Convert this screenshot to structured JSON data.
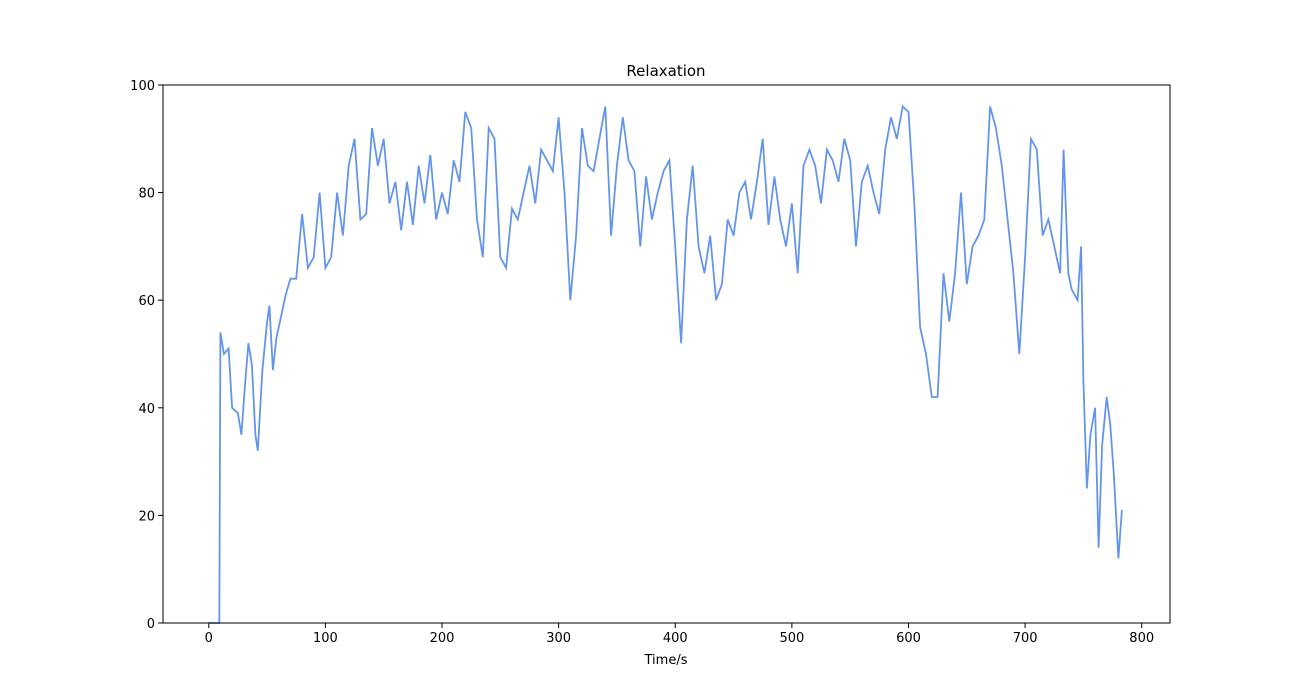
{
  "chart_data": {
    "type": "line",
    "title": "Relaxation",
    "x_label": "Time/s",
    "x": [
      0,
      9,
      10,
      13,
      17,
      20,
      25,
      28,
      31,
      34,
      37,
      40,
      42,
      46,
      50,
      52,
      55,
      58,
      62,
      66,
      70,
      75,
      80,
      85,
      90,
      95,
      100,
      105,
      110,
      115,
      120,
      125,
      130,
      135,
      140,
      145,
      150,
      155,
      160,
      165,
      170,
      175,
      180,
      185,
      190,
      195,
      200,
      205,
      210,
      215,
      220,
      225,
      230,
      235,
      240,
      245,
      250,
      255,
      260,
      265,
      270,
      275,
      280,
      285,
      290,
      295,
      300,
      305,
      310,
      315,
      320,
      325,
      330,
      335,
      340,
      345,
      350,
      355,
      360,
      365,
      370,
      375,
      380,
      385,
      390,
      395,
      400,
      405,
      410,
      415,
      420,
      425,
      430,
      435,
      440,
      445,
      450,
      455,
      460,
      465,
      470,
      475,
      480,
      485,
      490,
      495,
      500,
      505,
      510,
      515,
      520,
      525,
      530,
      535,
      540,
      545,
      550,
      555,
      560,
      565,
      570,
      575,
      580,
      585,
      590,
      595,
      600,
      605,
      610,
      615,
      620,
      625,
      630,
      635,
      640,
      645,
      650,
      655,
      660,
      665,
      670,
      675,
      680,
      685,
      690,
      695,
      700,
      705,
      710,
      715,
      720,
      725,
      730,
      733,
      737,
      740,
      745,
      748,
      750,
      753,
      756,
      760,
      763,
      766,
      770,
      773,
      776,
      780,
      783
    ],
    "series": [
      {
        "name": "Relaxation",
        "color": "#6495ed",
        "values": [
          0,
          0,
          54,
          50,
          51,
          40,
          39,
          35,
          44,
          52,
          48,
          35,
          32,
          47,
          56,
          59,
          47,
          53,
          57,
          61,
          64,
          64,
          76,
          66,
          68,
          80,
          66,
          68,
          80,
          72,
          85,
          90,
          75,
          76,
          92,
          85,
          90,
          78,
          82,
          73,
          82,
          74,
          85,
          78,
          87,
          75,
          80,
          76,
          86,
          82,
          95,
          92,
          75,
          68,
          92,
          90,
          68,
          66,
          77,
          75,
          80,
          85,
          78,
          88,
          86,
          84,
          94,
          80,
          60,
          72,
          92,
          85,
          84,
          90,
          96,
          72,
          85,
          94,
          86,
          84,
          70,
          83,
          75,
          80,
          84,
          86,
          70,
          52,
          75,
          85,
          70,
          65,
          72,
          60,
          63,
          75,
          72,
          80,
          82,
          75,
          82,
          90,
          74,
          83,
          75,
          70,
          78,
          65,
          85,
          88,
          85,
          78,
          88,
          86,
          82,
          90,
          86,
          70,
          82,
          85,
          80,
          76,
          88,
          94,
          90,
          96,
          95,
          78,
          55,
          50,
          42,
          42,
          65,
          56,
          65,
          80,
          63,
          70,
          72,
          75,
          96,
          92,
          85,
          75,
          65,
          50,
          68,
          90,
          88,
          72,
          75,
          70,
          65,
          88,
          65,
          62,
          60,
          70,
          45,
          25,
          35,
          40,
          14,
          33,
          42,
          37,
          28,
          12,
          21
        ]
      }
    ],
    "xlim": [
      -39.25,
      824.25
    ],
    "ylim": [
      0,
      100
    ],
    "xticks": [
      0,
      100,
      200,
      300,
      400,
      500,
      600,
      700,
      800
    ],
    "yticks": [
      0,
      20,
      40,
      60,
      80,
      100
    ]
  }
}
